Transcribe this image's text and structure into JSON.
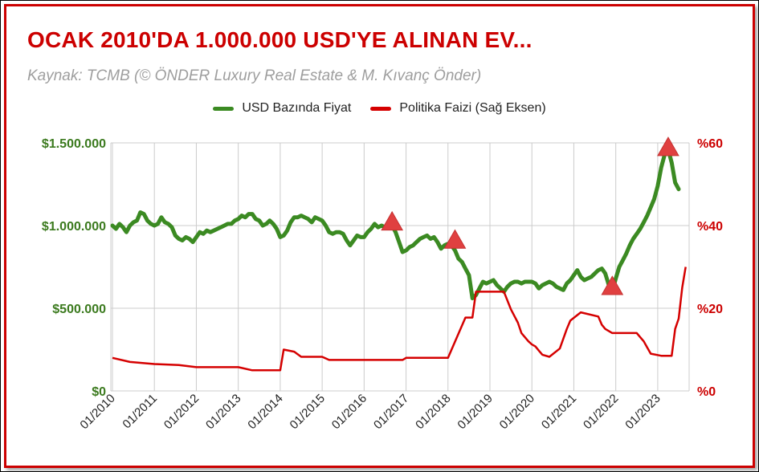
{
  "title": "OCAK 2010'DA 1.000.000 USD'YE ALINAN EV...",
  "subtitle": "Kaynak: TCMB (© ÖNDER Luxury Real Estate & M. Kıvanç Önder)",
  "colors": {
    "frame": "#cc0000",
    "usd_series": "#3b8a22",
    "rate_series": "#d50000",
    "marker": "#e04040",
    "left_axis_text": "#3b7a1e",
    "right_axis_text": "#cc0000",
    "grid": "#cccccc"
  },
  "chart_data": {
    "type": "line",
    "title": "OCAK 2010'DA 1.000.000 USD'YE ALINAN EV...",
    "subtitle": "Kaynak: TCMB (© ÖNDER Luxury Real Estate & M. Kıvanç Önder)",
    "legend_position": "top",
    "grid": true,
    "x_range": [
      "2010-01",
      "2023-07"
    ],
    "x_tick_labels": [
      "01/2010",
      "01/2011",
      "01/2012",
      "01/2013",
      "01/2014",
      "01/2015",
      "01/2016",
      "01/2017",
      "01/2018",
      "01/2019",
      "01/2020",
      "01/2021",
      "01/2022",
      "01/2023"
    ],
    "y_left": {
      "min": 0,
      "max": 1500000,
      "ticks": [
        0,
        500000,
        1000000,
        1500000
      ],
      "tick_labels": [
        "$0",
        "$500.000",
        "$1.000.000",
        "$1.500.000"
      ]
    },
    "y_right": {
      "min": 0,
      "max": 60,
      "ticks": [
        0,
        20,
        40,
        60
      ],
      "tick_labels": [
        "%0",
        "%20",
        "%40",
        "%60"
      ]
    },
    "series": [
      {
        "name": "USD Bazında Fiyat",
        "axis": "left",
        "color": "#3b8a22",
        "points": [
          [
            "2010-01",
            1000000
          ],
          [
            "2010-02",
            980000
          ],
          [
            "2010-03",
            1010000
          ],
          [
            "2010-04",
            990000
          ],
          [
            "2010-05",
            960000
          ],
          [
            "2010-06",
            1000000
          ],
          [
            "2010-07",
            1020000
          ],
          [
            "2010-08",
            1030000
          ],
          [
            "2010-09",
            1080000
          ],
          [
            "2010-10",
            1070000
          ],
          [
            "2010-11",
            1030000
          ],
          [
            "2010-12",
            1010000
          ],
          [
            "2011-01",
            1000000
          ],
          [
            "2011-02",
            1010000
          ],
          [
            "2011-03",
            1050000
          ],
          [
            "2011-04",
            1020000
          ],
          [
            "2011-05",
            1010000
          ],
          [
            "2011-06",
            990000
          ],
          [
            "2011-07",
            940000
          ],
          [
            "2011-08",
            920000
          ],
          [
            "2011-09",
            910000
          ],
          [
            "2011-10",
            930000
          ],
          [
            "2011-11",
            920000
          ],
          [
            "2011-12",
            900000
          ],
          [
            "2012-01",
            930000
          ],
          [
            "2012-02",
            960000
          ],
          [
            "2012-03",
            950000
          ],
          [
            "2012-04",
            970000
          ],
          [
            "2012-05",
            960000
          ],
          [
            "2012-06",
            970000
          ],
          [
            "2012-07",
            980000
          ],
          [
            "2012-08",
            990000
          ],
          [
            "2012-09",
            1000000
          ],
          [
            "2012-10",
            1010000
          ],
          [
            "2012-11",
            1010000
          ],
          [
            "2012-12",
            1030000
          ],
          [
            "2013-01",
            1040000
          ],
          [
            "2013-02",
            1060000
          ],
          [
            "2013-03",
            1050000
          ],
          [
            "2013-04",
            1070000
          ],
          [
            "2013-05",
            1070000
          ],
          [
            "2013-06",
            1040000
          ],
          [
            "2013-07",
            1030000
          ],
          [
            "2013-08",
            1000000
          ],
          [
            "2013-09",
            1010000
          ],
          [
            "2013-10",
            1030000
          ],
          [
            "2013-11",
            1010000
          ],
          [
            "2013-12",
            980000
          ],
          [
            "2014-01",
            930000
          ],
          [
            "2014-02",
            940000
          ],
          [
            "2014-03",
            970000
          ],
          [
            "2014-04",
            1020000
          ],
          [
            "2014-05",
            1050000
          ],
          [
            "2014-06",
            1050000
          ],
          [
            "2014-07",
            1060000
          ],
          [
            "2014-08",
            1050000
          ],
          [
            "2014-09",
            1040000
          ],
          [
            "2014-10",
            1020000
          ],
          [
            "2014-11",
            1050000
          ],
          [
            "2014-12",
            1040000
          ],
          [
            "2015-01",
            1030000
          ],
          [
            "2015-02",
            1000000
          ],
          [
            "2015-03",
            960000
          ],
          [
            "2015-04",
            950000
          ],
          [
            "2015-05",
            960000
          ],
          [
            "2015-06",
            960000
          ],
          [
            "2015-07",
            950000
          ],
          [
            "2015-08",
            910000
          ],
          [
            "2015-09",
            880000
          ],
          [
            "2015-10",
            910000
          ],
          [
            "2015-11",
            940000
          ],
          [
            "2015-12",
            930000
          ],
          [
            "2016-01",
            930000
          ],
          [
            "2016-02",
            960000
          ],
          [
            "2016-03",
            980000
          ],
          [
            "2016-04",
            1010000
          ],
          [
            "2016-05",
            990000
          ],
          [
            "2016-06",
            1000000
          ],
          [
            "2016-07",
            990000
          ],
          [
            "2016-08",
            1010000
          ],
          [
            "2016-09",
            1000000
          ],
          [
            "2016-10",
            960000
          ],
          [
            "2016-11",
            900000
          ],
          [
            "2016-12",
            840000
          ],
          [
            "2017-01",
            850000
          ],
          [
            "2017-02",
            870000
          ],
          [
            "2017-03",
            880000
          ],
          [
            "2017-04",
            900000
          ],
          [
            "2017-05",
            920000
          ],
          [
            "2017-06",
            930000
          ],
          [
            "2017-07",
            940000
          ],
          [
            "2017-08",
            920000
          ],
          [
            "2017-09",
            930000
          ],
          [
            "2017-10",
            900000
          ],
          [
            "2017-11",
            860000
          ],
          [
            "2017-12",
            880000
          ],
          [
            "2018-01",
            890000
          ],
          [
            "2018-02",
            880000
          ],
          [
            "2018-03",
            850000
          ],
          [
            "2018-04",
            800000
          ],
          [
            "2018-05",
            780000
          ],
          [
            "2018-06",
            740000
          ],
          [
            "2018-07",
            700000
          ],
          [
            "2018-08",
            560000
          ],
          [
            "2018-09",
            580000
          ],
          [
            "2018-10",
            620000
          ],
          [
            "2018-11",
            660000
          ],
          [
            "2018-12",
            650000
          ],
          [
            "2019-01",
            660000
          ],
          [
            "2019-02",
            670000
          ],
          [
            "2019-03",
            640000
          ],
          [
            "2019-04",
            620000
          ],
          [
            "2019-05",
            600000
          ],
          [
            "2019-06",
            630000
          ],
          [
            "2019-07",
            650000
          ],
          [
            "2019-08",
            660000
          ],
          [
            "2019-09",
            660000
          ],
          [
            "2019-10",
            650000
          ],
          [
            "2019-11",
            660000
          ],
          [
            "2019-12",
            660000
          ],
          [
            "2020-01",
            660000
          ],
          [
            "2020-02",
            650000
          ],
          [
            "2020-03",
            620000
          ],
          [
            "2020-04",
            640000
          ],
          [
            "2020-05",
            650000
          ],
          [
            "2020-06",
            660000
          ],
          [
            "2020-07",
            650000
          ],
          [
            "2020-08",
            630000
          ],
          [
            "2020-09",
            620000
          ],
          [
            "2020-10",
            610000
          ],
          [
            "2020-11",
            650000
          ],
          [
            "2020-12",
            670000
          ],
          [
            "2021-01",
            700000
          ],
          [
            "2021-02",
            730000
          ],
          [
            "2021-03",
            690000
          ],
          [
            "2021-04",
            670000
          ],
          [
            "2021-05",
            680000
          ],
          [
            "2021-06",
            690000
          ],
          [
            "2021-07",
            710000
          ],
          [
            "2021-08",
            730000
          ],
          [
            "2021-09",
            740000
          ],
          [
            "2021-10",
            710000
          ],
          [
            "2021-11",
            640000
          ],
          [
            "2021-12",
            600000
          ],
          [
            "2022-01",
            680000
          ],
          [
            "2022-02",
            750000
          ],
          [
            "2022-03",
            790000
          ],
          [
            "2022-04",
            830000
          ],
          [
            "2022-05",
            880000
          ],
          [
            "2022-06",
            920000
          ],
          [
            "2022-07",
            950000
          ],
          [
            "2022-08",
            980000
          ],
          [
            "2022-09",
            1020000
          ],
          [
            "2022-10",
            1060000
          ],
          [
            "2022-11",
            1110000
          ],
          [
            "2022-12",
            1160000
          ],
          [
            "2023-01",
            1240000
          ],
          [
            "2023-02",
            1350000
          ],
          [
            "2023-03",
            1430000
          ],
          [
            "2023-04",
            1460000
          ],
          [
            "2023-05",
            1380000
          ],
          [
            "2023-06",
            1260000
          ],
          [
            "2023-07",
            1220000
          ]
        ]
      },
      {
        "name": "Politika Faizi (Sağ Eksen)",
        "axis": "right",
        "color": "#d50000",
        "points": [
          [
            "2010-01",
            8.0
          ],
          [
            "2010-06",
            7.0
          ],
          [
            "2011-01",
            6.5
          ],
          [
            "2011-08",
            6.25
          ],
          [
            "2012-01",
            5.75
          ],
          [
            "2013-01",
            5.75
          ],
          [
            "2013-05",
            5.0
          ],
          [
            "2014-01",
            5.0
          ],
          [
            "2014-02",
            10.0
          ],
          [
            "2014-05",
            9.5
          ],
          [
            "2014-07",
            8.25
          ],
          [
            "2015-01",
            8.25
          ],
          [
            "2015-03",
            7.5
          ],
          [
            "2016-01",
            7.5
          ],
          [
            "2016-12",
            7.5
          ],
          [
            "2017-01",
            8.0
          ],
          [
            "2017-12",
            8.0
          ],
          [
            "2018-01",
            8.0
          ],
          [
            "2018-06",
            17.75
          ],
          [
            "2018-08",
            17.75
          ],
          [
            "2018-09",
            24.0
          ],
          [
            "2019-05",
            24.0
          ],
          [
            "2019-07",
            19.75
          ],
          [
            "2019-09",
            16.5
          ],
          [
            "2019-10",
            14.0
          ],
          [
            "2019-12",
            12.0
          ],
          [
            "2020-01",
            11.25
          ],
          [
            "2020-02",
            10.75
          ],
          [
            "2020-03",
            9.75
          ],
          [
            "2020-04",
            8.75
          ],
          [
            "2020-06",
            8.25
          ],
          [
            "2020-09",
            10.25
          ],
          [
            "2020-11",
            15.0
          ],
          [
            "2020-12",
            17.0
          ],
          [
            "2021-03",
            19.0
          ],
          [
            "2021-08",
            18.0
          ],
          [
            "2021-09",
            16.0
          ],
          [
            "2021-10",
            15.0
          ],
          [
            "2021-12",
            14.0
          ],
          [
            "2022-01",
            14.0
          ],
          [
            "2022-07",
            14.0
          ],
          [
            "2022-08",
            13.0
          ],
          [
            "2022-09",
            12.0
          ],
          [
            "2022-10",
            10.5
          ],
          [
            "2022-11",
            9.0
          ],
          [
            "2023-02",
            8.5
          ],
          [
            "2023-05",
            8.5
          ],
          [
            "2023-06",
            15.0
          ],
          [
            "2023-07",
            17.5
          ],
          [
            "2023-08",
            25.0
          ],
          [
            "2023-09",
            30.0
          ]
        ]
      }
    ],
    "annotations": [
      {
        "type": "triangle-marker",
        "x": "2016-09",
        "series": "USD Bazında Fiyat",
        "y": 1020000
      },
      {
        "type": "triangle-marker",
        "x": "2018-03",
        "series": "USD Bazında Fiyat",
        "y": 910000
      },
      {
        "type": "triangle-marker",
        "x": "2021-12",
        "series": "USD Bazında Fiyat",
        "y": 630000
      },
      {
        "type": "triangle-marker",
        "x": "2023-04",
        "series": "USD Bazında Fiyat",
        "y": 1470000
      }
    ]
  }
}
